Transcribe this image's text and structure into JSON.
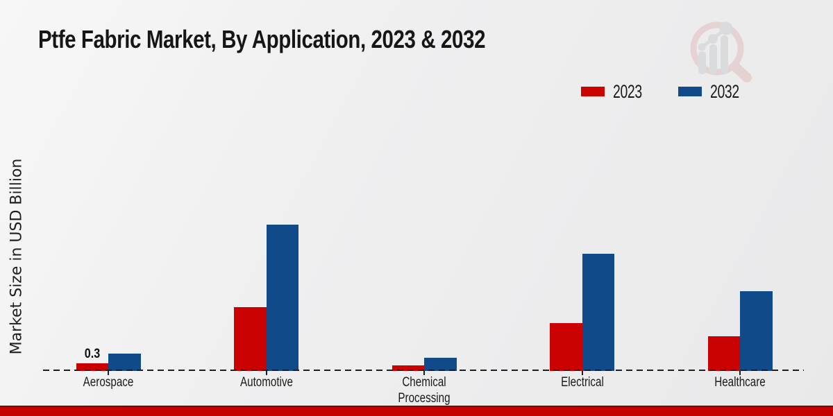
{
  "title": "Ptfe Fabric Market, By Application, 2023 & 2032",
  "ylabel": "Market Size in USD Billion",
  "legend": {
    "items": [
      {
        "label": "2023",
        "color": "#cb0202"
      },
      {
        "label": "2032",
        "color": "#114a89"
      }
    ]
  },
  "colors": {
    "series_2023": "#cb0202",
    "series_2032": "#114a89",
    "footer_bar": "#c40000",
    "axis": "#1d1d1d"
  },
  "chart_data": {
    "type": "bar",
    "title": "Ptfe Fabric Market, By Application, 2023 & 2032",
    "xlabel": "",
    "ylabel": "Market Size in USD Billion",
    "categories": [
      "Aerospace",
      "Automotive",
      "Chemical Processing",
      "Electrical",
      "Healthcare"
    ],
    "series": [
      {
        "name": "2023",
        "color": "#cb0202",
        "values": [
          0.3,
          2.4,
          0.2,
          1.8,
          1.3
        ],
        "data_labels": [
          "0.3",
          "",
          "",
          "",
          ""
        ]
      },
      {
        "name": "2032",
        "color": "#114a89",
        "values": [
          0.65,
          5.5,
          0.5,
          4.4,
          3.0
        ],
        "data_labels": [
          "",
          "",
          "",
          "",
          ""
        ]
      }
    ],
    "ylim": [
      0,
      6
    ],
    "grid": false,
    "legend_position": "top-right",
    "baseline_style": "dashed",
    "y_axis_ticks_visible": false
  },
  "watermark": {
    "name": "magnifier-bar-chart-logo"
  }
}
